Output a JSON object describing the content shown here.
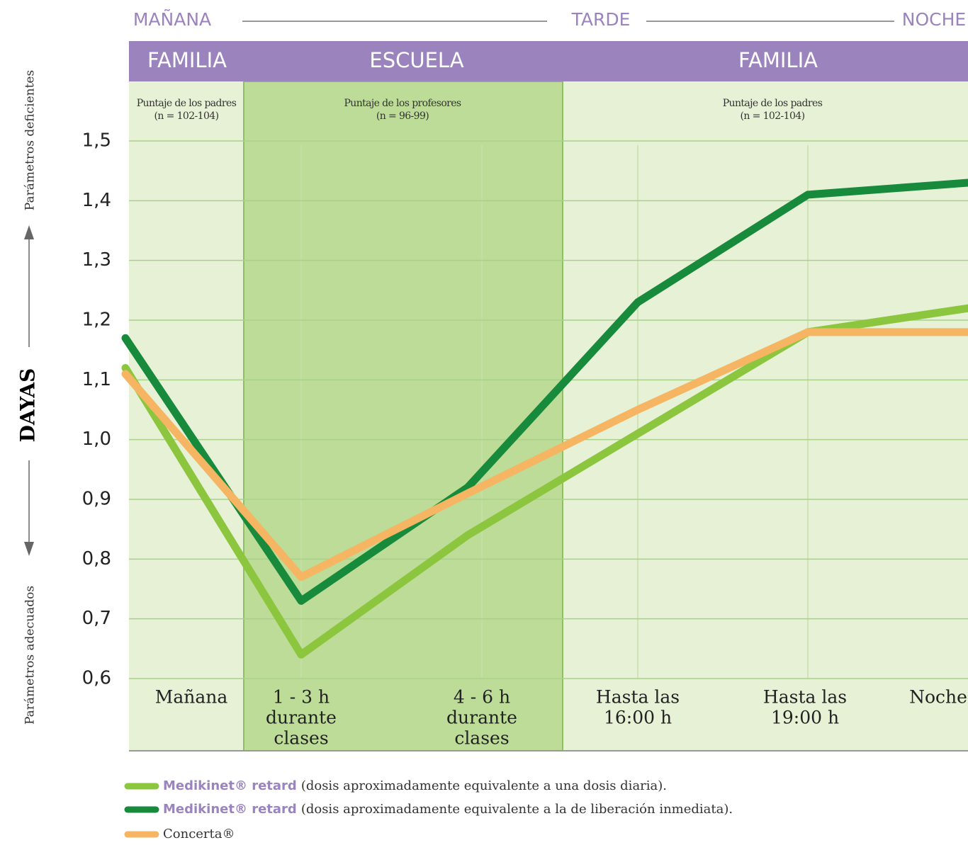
{
  "chart_data": {
    "type": "line",
    "periods": [
      "MAÑANA",
      "TARDE",
      "NOCHE"
    ],
    "settings": [
      "FAMILIA",
      "ESCUELA",
      "FAMILIA"
    ],
    "raters": [
      {
        "label": "Puntaje de los padres",
        "n": "(n = 102-104)"
      },
      {
        "label": "Puntaje de los profesores",
        "n": "(n = 96-99)"
      },
      {
        "label": "Puntaje de los padres",
        "n": "(n = 102-104)"
      }
    ],
    "y_label": "DAYAS",
    "y_high_label": "Parámetros deficientes",
    "y_low_label": "Parámetros adecuados",
    "categories": [
      [
        "Mañana"
      ],
      [
        "1 - 3 h",
        "durante",
        "clases"
      ],
      [
        "4 - 6 h",
        "durante",
        "clases"
      ],
      [
        "Hasta las",
        "16:00 h"
      ],
      [
        "Hasta las",
        "19:00 h"
      ],
      [
        "Noche"
      ]
    ],
    "ylim": [
      0.6,
      1.5
    ],
    "yticks": [
      {
        "value": 0.6,
        "label": "0,6"
      },
      {
        "value": 0.7,
        "label": "0,7"
      },
      {
        "value": 0.8,
        "label": "0,8"
      },
      {
        "value": 0.9,
        "label": "0,9"
      },
      {
        "value": 1.0,
        "label": "1,0"
      },
      {
        "value": 1.1,
        "label": "1,1"
      },
      {
        "value": 1.2,
        "label": "1,2"
      },
      {
        "value": 1.3,
        "label": "1,3"
      },
      {
        "value": 1.4,
        "label": "1,4"
      },
      {
        "value": 1.5,
        "label": "1,5"
      }
    ],
    "grid": true,
    "series": [
      {
        "name": "Medikinet® retard",
        "note": "(dosis aproximadamente equivalente a una dosis diaria).",
        "color": "#8cc63f",
        "values": [
          1.12,
          0.64,
          0.84,
          1.01,
          1.18,
          1.22
        ]
      },
      {
        "name": "Medikinet® retard",
        "note": "(dosis aproximadamente equivalente a la de liberación inmediata).",
        "color": "#178a3c",
        "values": [
          1.17,
          0.73,
          0.92,
          1.23,
          1.41,
          1.43
        ]
      },
      {
        "name": "Concerta®",
        "color": "#f6b562",
        "values": [
          1.11,
          0.77,
          0.91,
          1.05,
          1.18,
          1.18
        ]
      }
    ]
  }
}
